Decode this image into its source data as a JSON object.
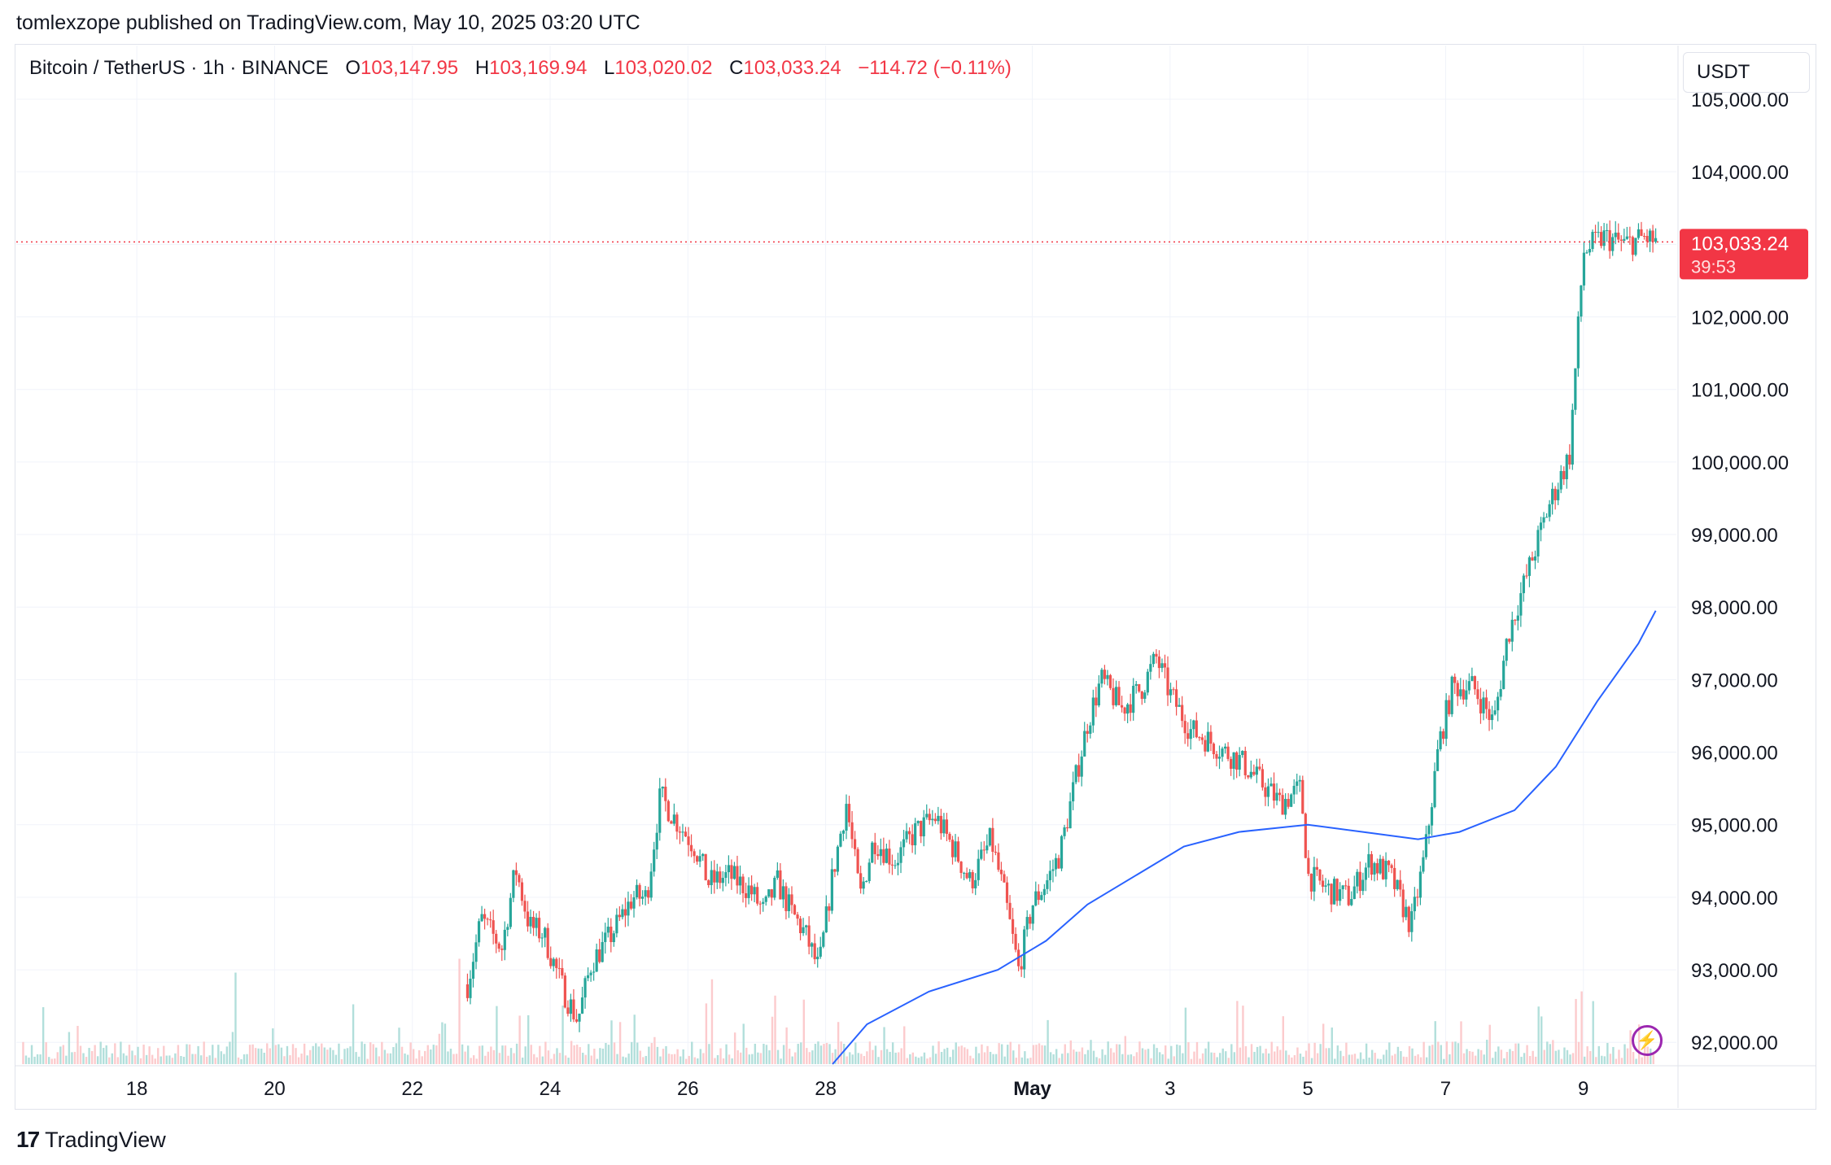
{
  "header": {
    "published_by": "tomlexzope published on TradingView.com, May 10, 2025 03:20 UTC"
  },
  "legend": {
    "symbol": "Bitcoin / TetherUS · 1h · BINANCE",
    "open_label": "O",
    "open": "103,147.95",
    "high_label": "H",
    "high": "103,169.94",
    "low_label": "L",
    "low": "103,020.02",
    "close_label": "C",
    "close": "103,033.24",
    "change": "−114.72 (−0.11%)"
  },
  "currency": "USDT",
  "price_tag": {
    "price": "103,033.24",
    "countdown": "39:53"
  },
  "footer": {
    "brand": "TradingView"
  },
  "colors": {
    "up": "#26a69a",
    "down": "#ef5350",
    "ma": "#2962ff",
    "price_line": "#f23645"
  },
  "chart_data": {
    "type": "candlestick",
    "symbol": "BTCUSDT",
    "interval": "1h",
    "ylim": [
      91700,
      105000
    ],
    "y_ticks": [
      {
        "value": 92000,
        "label": "92,000.00"
      },
      {
        "value": 93000,
        "label": "93,000.00"
      },
      {
        "value": 94000,
        "label": "94,000.00"
      },
      {
        "value": 95000,
        "label": "95,000.00"
      },
      {
        "value": 96000,
        "label": "96,000.00"
      },
      {
        "value": 97000,
        "label": "97,000.00"
      },
      {
        "value": 98000,
        "label": "98,000.00"
      },
      {
        "value": 99000,
        "label": "99,000.00"
      },
      {
        "value": 100000,
        "label": "100,000.00"
      },
      {
        "value": 101000,
        "label": "101,000.00"
      },
      {
        "value": 102000,
        "label": "102,000.00"
      },
      {
        "value": 103000,
        "label": "103,000.00"
      },
      {
        "value": 104000,
        "label": "104,000.00"
      },
      {
        "value": 105000,
        "label": "105,000.00"
      }
    ],
    "x_ticks": [
      {
        "day": 18,
        "label": "18"
      },
      {
        "day": 20,
        "label": "20"
      },
      {
        "day": 22,
        "label": "22"
      },
      {
        "day": 24,
        "label": "24"
      },
      {
        "day": 26,
        "label": "26"
      },
      {
        "day": 28,
        "label": "28"
      },
      {
        "day": 31,
        "label": "May",
        "bold": true
      },
      {
        "day": 33,
        "label": "3"
      },
      {
        "day": 35,
        "label": "5"
      },
      {
        "day": 37,
        "label": "7"
      },
      {
        "day": 39,
        "label": "9"
      }
    ],
    "x_range_days": [
      16.25,
      40.35
    ],
    "last_price": 103033.24,
    "close_path": [
      [
        22.8,
        92800
      ],
      [
        23.0,
        93700
      ],
      [
        23.3,
        93300
      ],
      [
        23.5,
        94400
      ],
      [
        23.7,
        93600
      ],
      [
        23.9,
        93500
      ],
      [
        24.2,
        92700
      ],
      [
        24.4,
        92300
      ],
      [
        24.6,
        93100
      ],
      [
        24.9,
        93500
      ],
      [
        25.2,
        94000
      ],
      [
        25.4,
        94000
      ],
      [
        25.6,
        95400
      ],
      [
        25.8,
        95100
      ],
      [
        26.1,
        94700
      ],
      [
        26.3,
        94200
      ],
      [
        26.6,
        94300
      ],
      [
        26.9,
        94100
      ],
      [
        27.1,
        93800
      ],
      [
        27.3,
        94200
      ],
      [
        27.5,
        93800
      ],
      [
        27.7,
        93500
      ],
      [
        27.9,
        93000
      ],
      [
        28.1,
        94300
      ],
      [
        28.3,
        95300
      ],
      [
        28.5,
        94000
      ],
      [
        28.7,
        94800
      ],
      [
        29.0,
        94500
      ],
      [
        29.3,
        94900
      ],
      [
        29.6,
        95100
      ],
      [
        29.9,
        94600
      ],
      [
        30.1,
        94200
      ],
      [
        30.4,
        94800
      ],
      [
        30.6,
        94000
      ],
      [
        30.8,
        93000
      ],
      [
        31.0,
        93900
      ],
      [
        31.2,
        94200
      ],
      [
        31.4,
        94600
      ],
      [
        31.6,
        95500
      ],
      [
        31.8,
        96400
      ],
      [
        32.0,
        97000
      ],
      [
        32.3,
        96600
      ],
      [
        32.6,
        96900
      ],
      [
        32.8,
        97300
      ],
      [
        33.0,
        96800
      ],
      [
        33.3,
        96300
      ],
      [
        33.5,
        96200
      ],
      [
        33.8,
        96000
      ],
      [
        34.0,
        95900
      ],
      [
        34.3,
        95600
      ],
      [
        34.6,
        95300
      ],
      [
        34.9,
        95500
      ],
      [
        35.0,
        94300
      ],
      [
        35.3,
        94100
      ],
      [
        35.6,
        94000
      ],
      [
        35.9,
        94500
      ],
      [
        36.2,
        94300
      ],
      [
        36.5,
        93600
      ],
      [
        36.7,
        94600
      ],
      [
        36.9,
        96100
      ],
      [
        37.1,
        96900
      ],
      [
        37.4,
        96900
      ],
      [
        37.7,
        96400
      ],
      [
        37.9,
        97600
      ],
      [
        38.2,
        98500
      ],
      [
        38.5,
        99400
      ],
      [
        38.8,
        100100
      ],
      [
        39.0,
        102900
      ],
      [
        39.3,
        103100
      ],
      [
        39.6,
        103000
      ],
      [
        39.9,
        103100
      ],
      [
        40.05,
        103033
      ]
    ],
    "ma_path": [
      [
        28.1,
        91700
      ],
      [
        28.6,
        92250
      ],
      [
        29.5,
        92700
      ],
      [
        30.5,
        93000
      ],
      [
        31.2,
        93400
      ],
      [
        31.8,
        93900
      ],
      [
        32.5,
        94300
      ],
      [
        33.2,
        94700
      ],
      [
        34.0,
        94900
      ],
      [
        35.0,
        95000
      ],
      [
        35.8,
        94900
      ],
      [
        36.6,
        94800
      ],
      [
        37.2,
        94900
      ],
      [
        38.0,
        95200
      ],
      [
        38.6,
        95800
      ],
      [
        39.2,
        96700
      ],
      [
        39.8,
        97500
      ],
      [
        40.05,
        97950
      ]
    ]
  }
}
